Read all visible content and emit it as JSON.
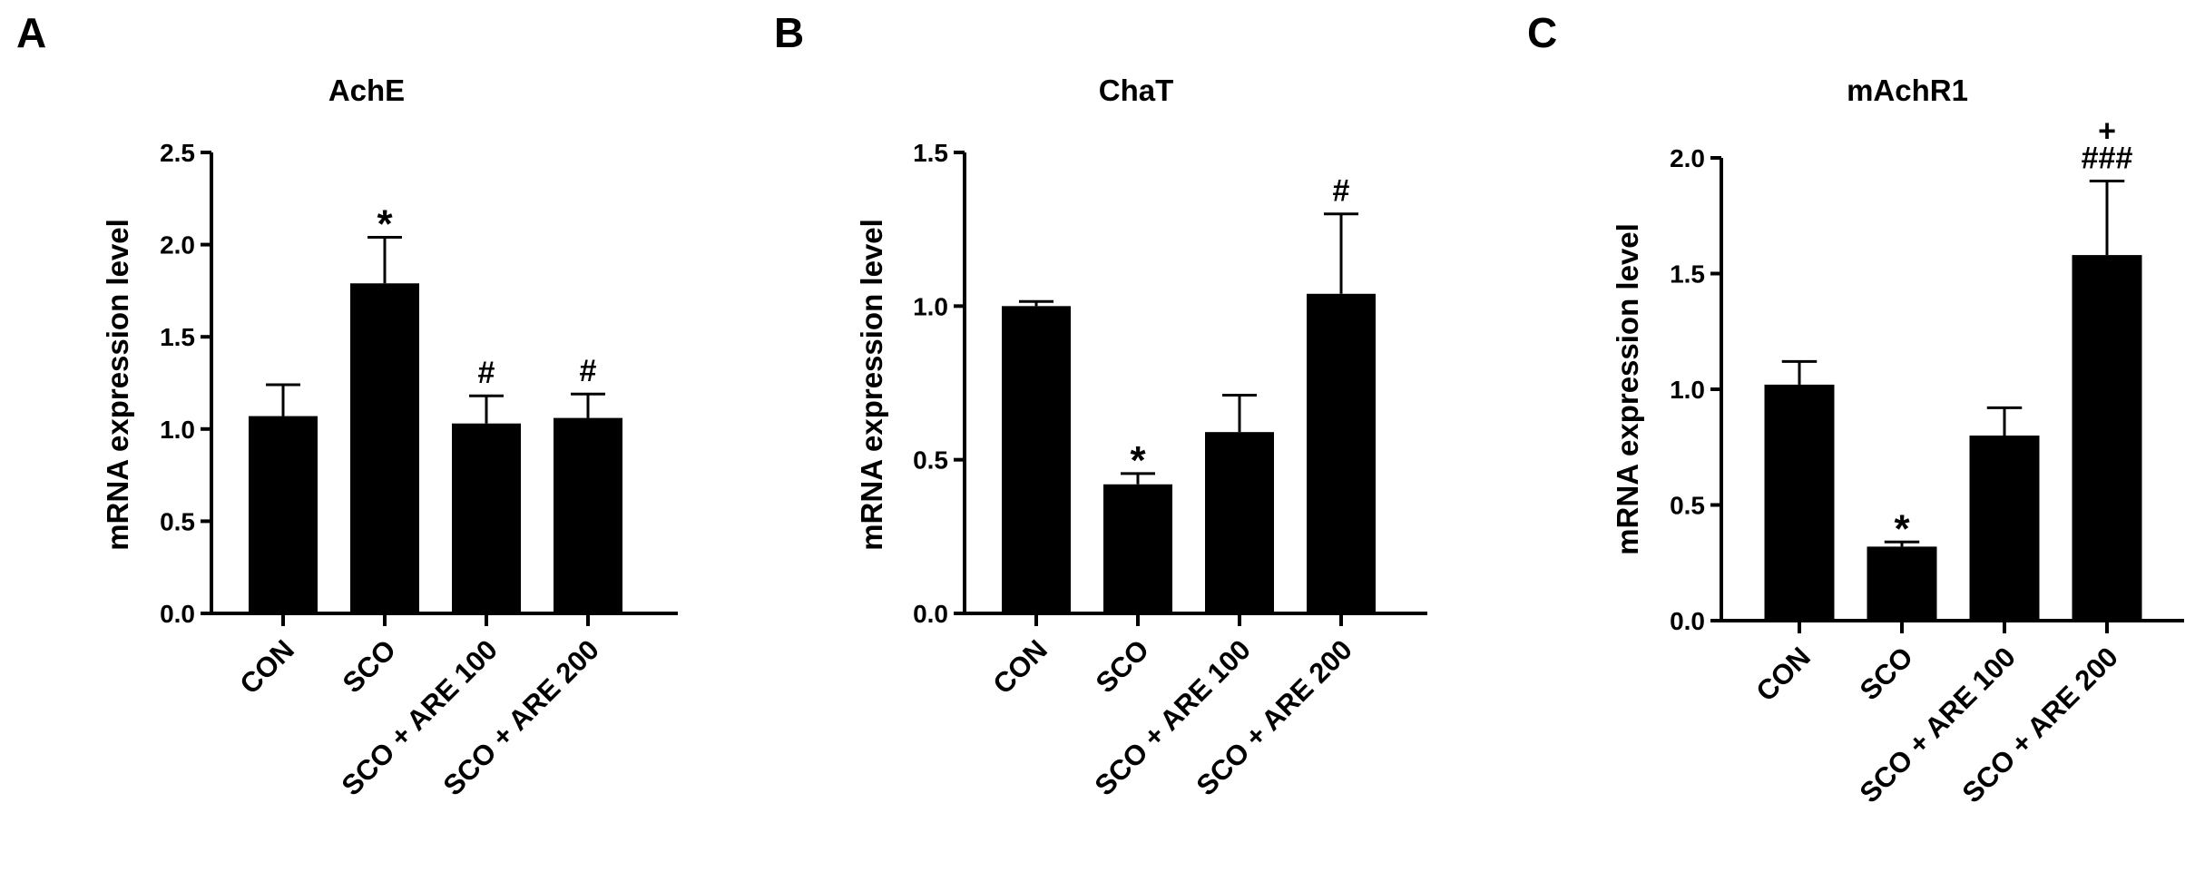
{
  "colors": {
    "bar": "#000000",
    "axis": "#000000",
    "background": "#ffffff"
  },
  "chart_data": [
    {
      "panel": "A",
      "type": "bar",
      "title": "AchE",
      "ylabel": "mRNA expression level",
      "xlabel": "",
      "ylim": [
        0,
        2.5
      ],
      "yticks": [
        "0.0",
        "0.5",
        "1.0",
        "1.5",
        "2.0",
        "2.5"
      ],
      "categories": [
        "CON",
        "SCO",
        "SCO + ARE 100",
        "SCO + ARE 200"
      ],
      "values": [
        1.07,
        1.79,
        1.03,
        1.06
      ],
      "errors": [
        0.17,
        0.25,
        0.15,
        0.13
      ],
      "annotations": [
        "",
        "*",
        "#",
        "#"
      ],
      "grid": false,
      "legend": "none"
    },
    {
      "panel": "B",
      "type": "bar",
      "title": "ChaT",
      "ylabel": "mRNA expression level",
      "xlabel": "",
      "ylim": [
        0,
        1.5
      ],
      "yticks": [
        "0.0",
        "0.5",
        "1.0",
        "1.5"
      ],
      "categories": [
        "CON",
        "SCO",
        "SCO + ARE 100",
        "SCO + ARE 200"
      ],
      "values": [
        1.0,
        0.42,
        0.59,
        1.04
      ],
      "errors": [
        0.015,
        0.035,
        0.12,
        0.26
      ],
      "annotations": [
        "",
        "*",
        "",
        "#"
      ],
      "grid": false,
      "legend": "none"
    },
    {
      "panel": "C",
      "type": "bar",
      "title": "mAchR1",
      "ylabel": "mRNA expression level",
      "xlabel": "",
      "ylim": [
        0,
        2.0
      ],
      "yticks": [
        "0.0",
        "0.5",
        "1.0",
        "1.5",
        "2.0"
      ],
      "categories": [
        "CON",
        "SCO",
        "SCO + ARE 100",
        "SCO + ARE 200"
      ],
      "values": [
        1.02,
        0.32,
        0.8,
        1.58
      ],
      "errors": [
        0.1,
        0.02,
        0.12,
        0.32
      ],
      "annotations": [
        "",
        "*",
        "",
        "+\n###"
      ],
      "grid": false,
      "legend": "none"
    }
  ]
}
